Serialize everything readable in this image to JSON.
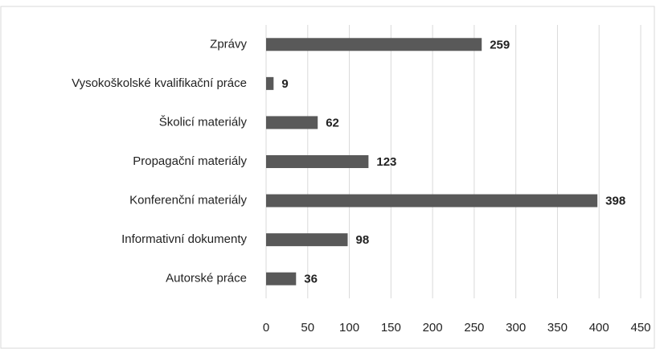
{
  "chart_data": {
    "type": "bar",
    "orientation": "horizontal",
    "categories": [
      "Zprávy",
      "Vysokoškolské kvalifikační práce",
      "Školicí materiály",
      "Propagační materiály",
      "Konferenční materiály",
      "Informativní dokumenty",
      "Autorské práce"
    ],
    "values": [
      259,
      9,
      62,
      123,
      398,
      98,
      36
    ],
    "color": "#595959",
    "xlim": [
      0,
      450
    ],
    "xticks": [
      0,
      50,
      100,
      150,
      200,
      250,
      300,
      350,
      400,
      450
    ],
    "grid": true
  }
}
